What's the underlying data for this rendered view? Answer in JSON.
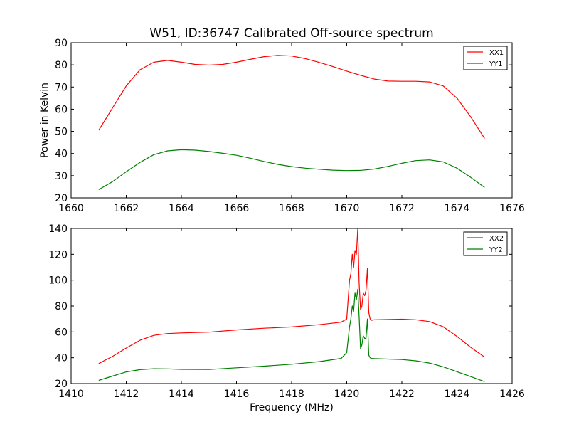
{
  "figure": {
    "title": "W51, ID:36747 Calibrated Off-source spectrum"
  },
  "chart_data": [
    {
      "type": "line",
      "title": "W51, ID:36747 Calibrated Off-source spectrum",
      "xlabel": "",
      "ylabel": "Power in Kelvin",
      "xlim": [
        1660,
        1676
      ],
      "ylim": [
        20,
        90
      ],
      "xticks": [
        1660,
        1662,
        1664,
        1666,
        1668,
        1670,
        1672,
        1674,
        1676
      ],
      "yticks": [
        20,
        30,
        40,
        50,
        60,
        70,
        80,
        90
      ],
      "grid": false,
      "legend": "top-right",
      "series": [
        {
          "name": "XX1",
          "color": "#ff0000",
          "x": [
            1661.0,
            1661.5,
            1662.0,
            1662.5,
            1663.0,
            1663.5,
            1664.0,
            1664.5,
            1665.0,
            1665.5,
            1666.0,
            1666.5,
            1667.0,
            1667.5,
            1668.0,
            1668.5,
            1669.0,
            1669.5,
            1670.0,
            1670.5,
            1671.0,
            1671.5,
            1672.0,
            1672.5,
            1673.0,
            1673.5,
            1674.0,
            1674.5,
            1675.0
          ],
          "y": [
            50.5,
            60.5,
            70.5,
            77.8,
            81.2,
            82.0,
            81.2,
            80.2,
            79.9,
            80.2,
            81.2,
            82.5,
            83.7,
            84.3,
            84.0,
            82.8,
            81.1,
            79.2,
            77.2,
            75.3,
            73.6,
            72.7,
            72.6,
            72.6,
            72.3,
            70.5,
            65.0,
            56.5,
            46.8
          ]
        },
        {
          "name": "YY1",
          "color": "#008000",
          "x": [
            1661.0,
            1661.5,
            1662.0,
            1662.5,
            1663.0,
            1663.5,
            1664.0,
            1664.5,
            1665.0,
            1665.5,
            1666.0,
            1666.5,
            1667.0,
            1667.5,
            1668.0,
            1668.5,
            1669.0,
            1669.5,
            1670.0,
            1670.5,
            1671.0,
            1671.5,
            1672.0,
            1672.5,
            1673.0,
            1673.5,
            1674.0,
            1674.5,
            1675.0
          ],
          "y": [
            23.7,
            27.3,
            31.8,
            36.0,
            39.5,
            41.2,
            41.7,
            41.5,
            40.9,
            40.1,
            39.2,
            37.9,
            36.4,
            35.1,
            34.1,
            33.4,
            32.9,
            32.5,
            32.3,
            32.4,
            33.0,
            34.2,
            35.6,
            36.8,
            37.1,
            36.2,
            33.4,
            29.2,
            24.7
          ]
        }
      ]
    },
    {
      "type": "line",
      "title": "",
      "xlabel": "Frequency (MHz)",
      "ylabel": "",
      "xlim": [
        1410,
        1426
      ],
      "ylim": [
        20,
        140
      ],
      "xticks": [
        1410,
        1412,
        1414,
        1416,
        1418,
        1420,
        1422,
        1424,
        1426
      ],
      "yticks": [
        20,
        40,
        60,
        80,
        100,
        120,
        140
      ],
      "grid": false,
      "legend": "top-right",
      "series": [
        {
          "name": "XX2",
          "color": "#ff0000",
          "x": [
            1411.0,
            1411.5,
            1412.0,
            1412.5,
            1413.0,
            1413.5,
            1414.0,
            1415.0,
            1416.0,
            1417.0,
            1418.0,
            1419.0,
            1419.8,
            1420.0,
            1420.1,
            1420.15,
            1420.2,
            1420.25,
            1420.3,
            1420.35,
            1420.4,
            1420.45,
            1420.5,
            1420.55,
            1420.6,
            1420.65,
            1420.7,
            1420.75,
            1420.8,
            1420.85,
            1420.9,
            1421.0,
            1422.0,
            1422.5,
            1423.0,
            1423.5,
            1424.0,
            1424.5,
            1425.0
          ],
          "y": [
            35.5,
            41.0,
            47.5,
            53.5,
            57.3,
            58.7,
            59.2,
            59.8,
            61.5,
            62.8,
            63.8,
            65.6,
            67.5,
            70.0,
            100.0,
            105.0,
            120.0,
            110.0,
            123.0,
            120.0,
            140.0,
            98.0,
            77.0,
            80.0,
            90.0,
            88.0,
            92.0,
            109.0,
            75.0,
            70.0,
            69.0,
            69.3,
            69.8,
            69.4,
            68.0,
            64.0,
            56.5,
            48.0,
            40.5
          ]
        },
        {
          "name": "YY2",
          "color": "#008000",
          "x": [
            1411.0,
            1411.5,
            1412.0,
            1412.5,
            1413.0,
            1413.5,
            1414.0,
            1415.0,
            1416.0,
            1417.0,
            1418.0,
            1419.0,
            1419.8,
            1420.0,
            1420.1,
            1420.15,
            1420.2,
            1420.25,
            1420.3,
            1420.35,
            1420.4,
            1420.45,
            1420.5,
            1420.55,
            1420.6,
            1420.65,
            1420.7,
            1420.75,
            1420.8,
            1420.85,
            1420.9,
            1421.0,
            1422.0,
            1422.5,
            1423.0,
            1423.5,
            1424.0,
            1424.5,
            1425.0
          ],
          "y": [
            22.5,
            25.8,
            29.0,
            30.8,
            31.5,
            31.4,
            31.0,
            30.9,
            32.2,
            33.5,
            35.0,
            37.0,
            39.5,
            44.0,
            64.0,
            70.0,
            80.0,
            76.0,
            90.0,
            85.0,
            93.0,
            72.0,
            47.0,
            50.0,
            57.0,
            55.0,
            55.0,
            70.0,
            42.0,
            40.0,
            39.5,
            39.3,
            38.6,
            37.6,
            35.9,
            33.0,
            29.2,
            25.4,
            21.5
          ]
        }
      ]
    }
  ]
}
